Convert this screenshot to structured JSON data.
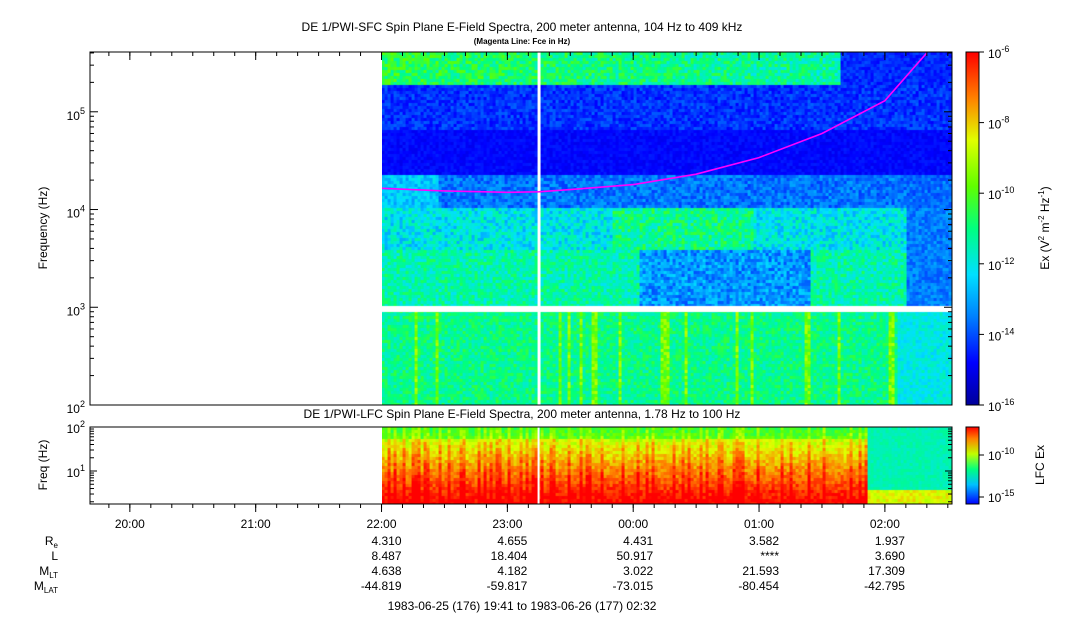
{
  "chart_data": [
    {
      "type": "heatmap",
      "title": "DE 1/PWI-SFC  Spin Plane E-Field Spectra, 200 meter antenna, 104 Hz to 409 kHz",
      "subtitle": "(Magenta Line: Fce in Hz)",
      "ylabel": "Frequency (Hz)",
      "yscale": "log",
      "ylim": [
        100,
        409000
      ],
      "yticks": [
        {
          "base": "10",
          "exp": "2"
        },
        {
          "base": "10",
          "exp": "3"
        },
        {
          "base": "10",
          "exp": "4"
        },
        {
          "base": "10",
          "exp": "5"
        }
      ],
      "colorbar": {
        "label_main": "Ex (V",
        "label_sup1": "2",
        "label_mid": " m",
        "label_sup2": "-2",
        "label_mid2": " Hz",
        "label_sup3": "-1",
        "label_end": ")",
        "scale": "log",
        "range": [
          1e-16,
          1e-06
        ],
        "ticks": [
          {
            "base": "10",
            "exp": "-6"
          },
          {
            "base": "10",
            "exp": "-8"
          },
          {
            "base": "10",
            "exp": "-10"
          },
          {
            "base": "10",
            "exp": "-12"
          },
          {
            "base": "10",
            "exp": "-14"
          },
          {
            "base": "10",
            "exp": "-16"
          }
        ]
      },
      "data_start": "22:00",
      "data_gap_time": "23:15",
      "fce_line": {
        "color": "#ff00ff",
        "points": [
          [
            "22:00",
            16500
          ],
          [
            "22:30",
            15500
          ],
          [
            "23:00",
            15000
          ],
          [
            "23:15",
            15200
          ],
          [
            "23:30",
            16000
          ],
          [
            "00:00",
            18000
          ],
          [
            "00:30",
            23000
          ],
          [
            "01:00",
            34000
          ],
          [
            "01:30",
            60000
          ],
          [
            "02:00",
            130000
          ],
          [
            "02:20",
            400000
          ]
        ]
      }
    },
    {
      "type": "heatmap",
      "title": "DE 1/PWI-LFC  Spin Plane E-Field Spectra, 200 meter antenna, 1.78 Hz to 100 Hz",
      "ylabel": "Freq (Hz)",
      "yscale": "log",
      "ylim": [
        1.78,
        100
      ],
      "yticks": [
        {
          "base": "10",
          "exp": "1"
        },
        {
          "base": "10",
          "exp": "2"
        }
      ],
      "colorbar": {
        "label": "LFC Ex",
        "scale": "log",
        "ticks": [
          {
            "base": "10",
            "exp": "-10"
          },
          {
            "base": "10",
            "exp": "-15"
          }
        ]
      }
    }
  ],
  "time_axis": {
    "ticks": [
      "20:00",
      "21:00",
      "22:00",
      "23:00",
      "00:00",
      "01:00",
      "02:00"
    ],
    "range_label": "1983-06-25 (176) 19:41 to 1983-06-26 (177) 02:32"
  },
  "ephemeris": [
    {
      "label": "R",
      "sub": "e",
      "values": [
        "4.310",
        "4.655",
        "4.431",
        "3.582",
        "1.937"
      ]
    },
    {
      "label": "L",
      "sub": "",
      "values": [
        "8.487",
        "18.404",
        "50.917",
        "****",
        "3.690"
      ]
    },
    {
      "label": "M",
      "sub": "LT",
      "values": [
        "4.638",
        "4.182",
        "3.022",
        "21.593",
        "17.309"
      ]
    },
    {
      "label": "M",
      "sub": "LAT",
      "values": [
        "-44.819",
        "-59.817",
        "-73.015",
        "-80.454",
        "-42.795"
      ]
    }
  ],
  "colors": {
    "magenta": "#ff00ff",
    "background": "#ffffff"
  }
}
